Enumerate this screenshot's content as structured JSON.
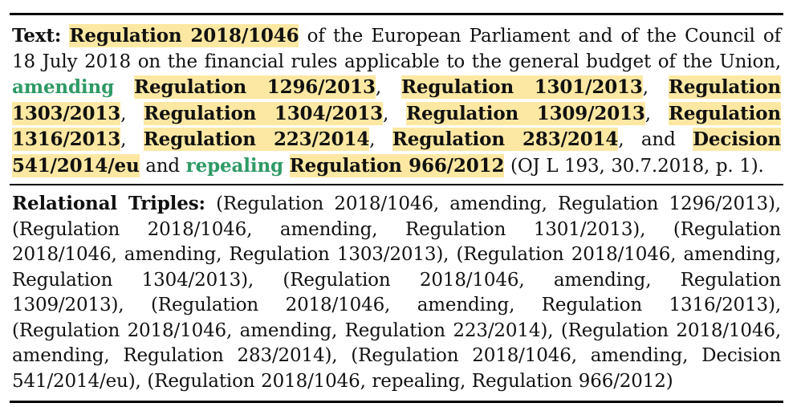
{
  "text_block": {
    "label": "Text:",
    "segments": [
      {
        "type": "entity",
        "text": "Regulation 2018/1046"
      },
      {
        "type": "plain",
        "text": " of the European Parliament and of the Council of 18 July 2018 on the financial rules applicable to the general budget of the Union, "
      },
      {
        "type": "relation",
        "text": "amending"
      },
      {
        "type": "plain",
        "text": " "
      },
      {
        "type": "entity",
        "text": "Regulation 1296/2013"
      },
      {
        "type": "plain",
        "text": ", "
      },
      {
        "type": "entity",
        "text": "Regulation 1301/2013"
      },
      {
        "type": "plain",
        "text": ", "
      },
      {
        "type": "entity",
        "text": "Regula­tion 1303/2013"
      },
      {
        "type": "plain",
        "text": ", "
      },
      {
        "type": "entity",
        "text": "Regulation 1304/2013"
      },
      {
        "type": "plain",
        "text": ", "
      },
      {
        "type": "entity",
        "text": "Regulation 1309/2013"
      },
      {
        "type": "plain",
        "text": ", "
      },
      {
        "type": "entity",
        "text": "Regula­tion 1316/2013"
      },
      {
        "type": "plain",
        "text": ", "
      },
      {
        "type": "entity",
        "text": "Regulation 223/2014"
      },
      {
        "type": "plain",
        "text": ", "
      },
      {
        "type": "entity",
        "text": "Regulation 283/2014"
      },
      {
        "type": "plain",
        "text": ", and "
      },
      {
        "type": "entity",
        "text": "Decision 541/2014/eu"
      },
      {
        "type": "plain",
        "text": " and "
      },
      {
        "type": "relation",
        "text": "repealing"
      },
      {
        "type": "plain",
        "text": " "
      },
      {
        "type": "entity",
        "text": "Regulation 966/2012"
      },
      {
        "type": "plain",
        "text": " (OJ L 193, 30.7.2018, p. 1)."
      }
    ]
  },
  "triples_block": {
    "label": "Relational Triples:",
    "triples": [
      "(Regulation 2018/1046, amending, Regulation 1296/2013)",
      "(Regulation 2018/1046, amending, Regulation 1301/2013)",
      "(Regulation 2018/1046, amending, Regulation 1303/2013)",
      "(Regulation 2018/1046, amending, Regulation 1304/2013)",
      "(Regulation 2018/1046, amending, Regulation 1309/2013)",
      "(Regulation 2018/1046, amending, Regulation 1316/2013)",
      "(Regulation 2018/1046, amending, Regulation 223/2014)",
      "(Regulation 2018/1046, amending, Regulation 283/2014)",
      "(Regulation 2018/1046, amending, Decision 541/2014/eu)",
      "(Regulation 2018/1046, repealing, Regulation 966/2012)"
    ]
  },
  "colors": {
    "entity_highlight": "#fde8a3",
    "relation_text": "#2f9a66",
    "rule": "#000000"
  }
}
